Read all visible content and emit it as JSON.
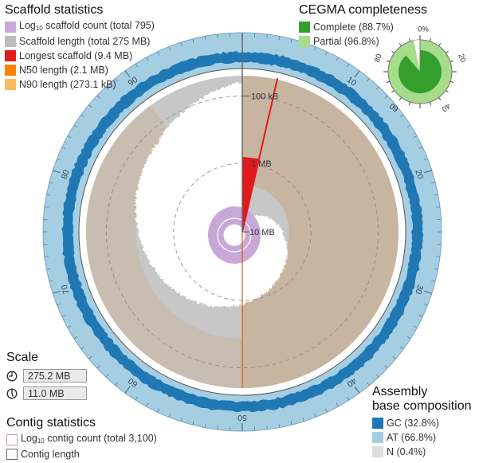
{
  "scaffold_legend": {
    "title": "Scaffold statistics",
    "items": [
      {
        "pre": "Log",
        "sub": "10",
        "post": " scaffold count (total 795)",
        "color": "#c9a8d9",
        "style": "fill"
      },
      {
        "pre": "Scaffold length (total 275 MB)",
        "sub": "",
        "post": "",
        "color": "#bdbdbd",
        "style": "fill"
      },
      {
        "pre": "Longest scaffold (9.4 MB)",
        "sub": "",
        "post": "",
        "color": "#e31a1c",
        "style": "fill"
      },
      {
        "pre": "N50 length (2.1 MB)",
        "sub": "",
        "post": "",
        "color": "#ff7f00",
        "style": "fill"
      },
      {
        "pre": "N90 length (273.1 kB)",
        "sub": "",
        "post": "",
        "color": "#fdb863",
        "style": "fill"
      }
    ]
  },
  "cegma": {
    "title": "CEGMA completeness",
    "items": [
      {
        "label": "Complete (88.7%)",
        "color": "#33a02c"
      },
      {
        "label": "Partial (96.8%)",
        "color": "#a6dc8a"
      }
    ],
    "complete_pct": 88.7,
    "partial_pct": 96.8,
    "tick_labels": [
      "0%",
      "20",
      "40",
      "60",
      "80"
    ]
  },
  "scale": {
    "title": "Scale",
    "items": [
      {
        "icon": "full-circle-clock-icon",
        "value": "275.2 MB"
      },
      {
        "icon": "partial-circle-clock-icon",
        "value": "11.0 MB"
      }
    ]
  },
  "contig_legend": {
    "title": "Contig statistics",
    "items": [
      {
        "pre": "Log",
        "sub": "10",
        "post": " contig count (total 3,100)",
        "style": "outline"
      },
      {
        "pre": "Contig length",
        "sub": "",
        "post": "",
        "style": "outline2"
      }
    ]
  },
  "base_legend": {
    "title_line1": "Assembly",
    "title_line2": "base composition",
    "items": [
      {
        "label": "GC (32.8%)",
        "color": "#1f78b4"
      },
      {
        "label": "AT (66.8%)",
        "color": "#a6cee3"
      },
      {
        "label": "N (0.4%)",
        "color": "#dddddd"
      }
    ]
  },
  "radial_labels": {
    "upper": [
      "100 kB",
      "1 MB"
    ],
    "center": "10 MB"
  },
  "chart_data": {
    "type": "snail",
    "percent_ticks": [
      "10",
      "20",
      "30",
      "40",
      "50",
      "60",
      "70",
      "80",
      "90"
    ],
    "total_length_mb": 275.2,
    "scaffold_count": 795,
    "contig_count": 3100,
    "longest_scaffold_mb": 9.4,
    "n50_mb": 2.1,
    "n90_kb": 273.1,
    "gc_pct": 32.8,
    "at_pct": 66.8,
    "n_pct": 0.4,
    "cegma_complete_pct": 88.7,
    "cegma_partial_pct": 96.8,
    "colors": {
      "scaffold_length": "#bdbdbd",
      "longest": "#e31a1c",
      "n50": "#ff7f00",
      "n90": "#fdb863",
      "count": "#c9a8d9",
      "gc": "#1f78b4",
      "at": "#a6cee3"
    }
  }
}
